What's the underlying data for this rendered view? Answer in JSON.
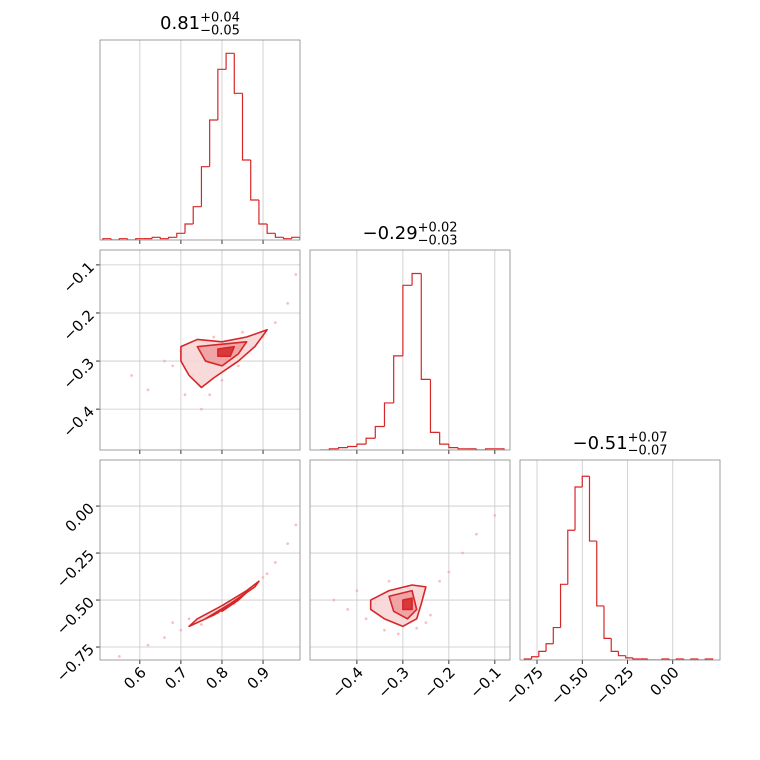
{
  "chart_data": [
    {
      "type": "histogram",
      "title": "0.81",
      "title_upper": "+0.04",
      "title_lower": "−0.05",
      "color": "#d62728",
      "grid": true,
      "bins": [
        0.51,
        0.53,
        0.55,
        0.57,
        0.59,
        0.61,
        0.63,
        0.65,
        0.67,
        0.69,
        0.71,
        0.73,
        0.75,
        0.77,
        0.79,
        0.81,
        0.83,
        0.85,
        0.87,
        0.89,
        0.91,
        0.93,
        0.95,
        0.97,
        0.99
      ],
      "values": [
        1,
        0,
        1,
        0,
        1,
        1,
        2,
        1,
        2,
        5,
        12,
        25,
        55,
        90,
        128,
        140,
        110,
        60,
        30,
        12,
        5,
        2,
        1,
        2
      ],
      "xlim": [
        0.503,
        0.99
      ],
      "xticks": [
        0.6,
        0.7,
        0.8,
        0.9
      ],
      "ylim": [
        0,
        150
      ]
    },
    {
      "type": "scatter",
      "color": "#d62728",
      "point_color": "#f0a8aa",
      "grid": true,
      "x": [
        0.58,
        0.62,
        0.66,
        0.68,
        0.71,
        0.73,
        0.75,
        0.77,
        0.8,
        0.84,
        0.87,
        0.9,
        0.93,
        0.96,
        0.98,
        0.7,
        0.78,
        0.85
      ],
      "y": [
        -0.33,
        -0.36,
        -0.3,
        -0.31,
        -0.37,
        -0.33,
        -0.4,
        -0.37,
        -0.34,
        -0.31,
        -0.27,
        -0.25,
        -0.22,
        -0.18,
        -0.12,
        -0.28,
        -0.25,
        -0.24
      ],
      "contours": [
        {
          "fill": "#f7d4d5",
          "x": [
            0.7,
            0.74,
            0.8,
            0.86,
            0.91,
            0.88,
            0.84,
            0.78,
            0.75,
            0.72,
            0.7
          ],
          "y": [
            -0.27,
            -0.255,
            -0.26,
            -0.25,
            -0.235,
            -0.27,
            -0.3,
            -0.335,
            -0.355,
            -0.33,
            -0.3
          ]
        },
        {
          "fill": "#ee9a9c",
          "x": [
            0.74,
            0.8,
            0.86,
            0.84,
            0.8,
            0.76
          ],
          "y": [
            -0.27,
            -0.265,
            -0.26,
            -0.285,
            -0.31,
            -0.3
          ]
        },
        {
          "fill": "#d62728",
          "x": [
            0.79,
            0.83,
            0.82,
            0.79
          ],
          "y": [
            -0.275,
            -0.27,
            -0.29,
            -0.29
          ]
        }
      ],
      "xlim": [
        0.503,
        0.99
      ],
      "xticks": [
        0.6,
        0.7,
        0.8,
        0.9
      ],
      "ylim": [
        -0.485,
        -0.069
      ],
      "yticks": [
        {
          "value": -0.1,
          "label": "−0.1"
        },
        {
          "value": -0.2,
          "label": "−0.2"
        },
        {
          "value": -0.3,
          "label": "−0.3"
        },
        {
          "value": -0.4,
          "label": "−0.4"
        }
      ]
    },
    {
      "type": "histogram",
      "title": "−0.29",
      "title_upper": "+0.02",
      "title_lower": "−0.03",
      "color": "#d62728",
      "grid": true,
      "bins": [
        -0.48,
        -0.46,
        -0.44,
        -0.42,
        -0.4,
        -0.38,
        -0.36,
        -0.34,
        -0.32,
        -0.3,
        -0.28,
        -0.26,
        -0.24,
        -0.22,
        -0.2,
        -0.18,
        -0.16,
        -0.14,
        -0.12,
        -0.1,
        -0.08
      ],
      "values": [
        0,
        1,
        2,
        3,
        5,
        10,
        20,
        40,
        80,
        140,
        150,
        60,
        15,
        5,
        2,
        1,
        1,
        0,
        1,
        1
      ],
      "xlim": [
        -0.502,
        -0.067
      ],
      "xticks": [
        {
          "value": -0.4,
          "label": "−0.4"
        },
        {
          "value": -0.3,
          "label": "−0.3"
        },
        {
          "value": -0.2,
          "label": "−0.2"
        },
        {
          "value": -0.1,
          "label": "−0.1"
        }
      ],
      "ylim": [
        0,
        170
      ]
    },
    {
      "type": "scatter",
      "color": "#d62728",
      "point_color": "#f0a8aa",
      "grid": true,
      "x": [
        0.55,
        0.62,
        0.66,
        0.7,
        0.72,
        0.75,
        0.79,
        0.83,
        0.87,
        0.9,
        0.93,
        0.96,
        0.98,
        0.68,
        0.91
      ],
      "y": [
        -0.8,
        -0.74,
        -0.7,
        -0.66,
        -0.6,
        -0.63,
        -0.57,
        -0.52,
        -0.44,
        -0.38,
        -0.3,
        -0.2,
        -0.1,
        -0.62,
        -0.36
      ],
      "contours": [
        {
          "fill": "#f7d4d5",
          "x": [
            0.72,
            0.74,
            0.8,
            0.86,
            0.89,
            0.88,
            0.82,
            0.76
          ],
          "y": [
            -0.64,
            -0.6,
            -0.53,
            -0.45,
            -0.4,
            -0.43,
            -0.52,
            -0.6
          ]
        },
        {
          "fill": "#ee9a9c",
          "x": [
            0.76,
            0.82,
            0.86,
            0.84,
            0.78
          ],
          "y": [
            -0.6,
            -0.52,
            -0.46,
            -0.5,
            -0.58
          ]
        },
        {
          "fill": "#d62728",
          "x": [
            0.8,
            0.84,
            0.82
          ],
          "y": [
            -0.56,
            -0.5,
            -0.52
          ]
        }
      ],
      "xlim": [
        0.503,
        0.99
      ],
      "xticks": [
        0.6,
        0.7,
        0.8,
        0.9
      ],
      "ylim": [
        -0.819,
        0.245
      ],
      "yticks": [
        {
          "value": 0,
          "label": "0.00"
        },
        {
          "value": -0.25,
          "label": "−0.25"
        },
        {
          "value": -0.5,
          "label": "−0.50"
        },
        {
          "value": -0.75,
          "label": "−0.75"
        }
      ]
    },
    {
      "type": "scatter",
      "color": "#d62728",
      "point_color": "#f0a8aa",
      "grid": true,
      "x": [
        -0.45,
        -0.42,
        -0.4,
        -0.38,
        -0.36,
        -0.34,
        -0.31,
        -0.27,
        -0.24,
        -0.22,
        -0.2,
        -0.17,
        -0.14,
        -0.1,
        -0.25,
        -0.33
      ],
      "y": [
        -0.5,
        -0.55,
        -0.45,
        -0.6,
        -0.52,
        -0.66,
        -0.68,
        -0.65,
        -0.58,
        -0.4,
        -0.35,
        -0.25,
        -0.15,
        -0.05,
        -0.62,
        -0.4
      ],
      "contours": [
        {
          "fill": "#f7d4d5",
          "x": [
            -0.37,
            -0.33,
            -0.28,
            -0.25,
            -0.26,
            -0.27,
            -0.3,
            -0.34,
            -0.37
          ],
          "y": [
            -0.5,
            -0.45,
            -0.42,
            -0.43,
            -0.52,
            -0.6,
            -0.64,
            -0.6,
            -0.55
          ]
        },
        {
          "fill": "#ee9a9c",
          "x": [
            -0.33,
            -0.28,
            -0.27,
            -0.29,
            -0.32
          ],
          "y": [
            -0.48,
            -0.45,
            -0.55,
            -0.6,
            -0.56
          ]
        },
        {
          "fill": "#d62728",
          "x": [
            -0.3,
            -0.28,
            -0.28,
            -0.3
          ],
          "y": [
            -0.5,
            -0.49,
            -0.55,
            -0.55
          ]
        }
      ],
      "xlim": [
        -0.502,
        -0.067
      ],
      "xticks": [
        {
          "value": -0.4,
          "label": "−0.4"
        },
        {
          "value": -0.3,
          "label": "−0.3"
        },
        {
          "value": -0.2,
          "label": "−0.2"
        },
        {
          "value": -0.1,
          "label": "−0.1"
        }
      ],
      "ylim": [
        -0.819,
        0.245
      ],
      "yticks": [
        {
          "value": 0,
          "label": "0.00"
        },
        {
          "value": -0.25,
          "label": "−0.25"
        },
        {
          "value": -0.5,
          "label": "−0.50"
        },
        {
          "value": -0.75,
          "label": "−0.75"
        }
      ]
    },
    {
      "type": "histogram",
      "title": "−0.51",
      "title_upper": "+0.07",
      "title_lower": "−0.07",
      "color": "#d62728",
      "grid": true,
      "bins": [
        -0.82,
        -0.78,
        -0.74,
        -0.7,
        -0.66,
        -0.62,
        -0.58,
        -0.54,
        -0.5,
        -0.46,
        -0.42,
        -0.38,
        -0.34,
        -0.3,
        -0.26,
        -0.22,
        -0.18,
        -0.14,
        -0.1,
        -0.06,
        -0.02,
        0.02,
        0.06,
        0.1,
        0.14,
        0.18,
        0.22
      ],
      "values": [
        1,
        3,
        8,
        15,
        30,
        70,
        120,
        160,
        170,
        110,
        50,
        20,
        8,
        4,
        2,
        1,
        1,
        0,
        0,
        1,
        0,
        1,
        0,
        1,
        0,
        1
      ],
      "xlim": [
        -0.844,
        0.261
      ],
      "xticks": [
        {
          "value": -0.75,
          "label": "−0.75"
        },
        {
          "value": -0.5,
          "label": "−0.50"
        },
        {
          "value": -0.25,
          "label": "−0.25"
        },
        {
          "value": 0,
          "label": "0.00"
        }
      ],
      "ylim": [
        0,
        185
      ]
    }
  ]
}
